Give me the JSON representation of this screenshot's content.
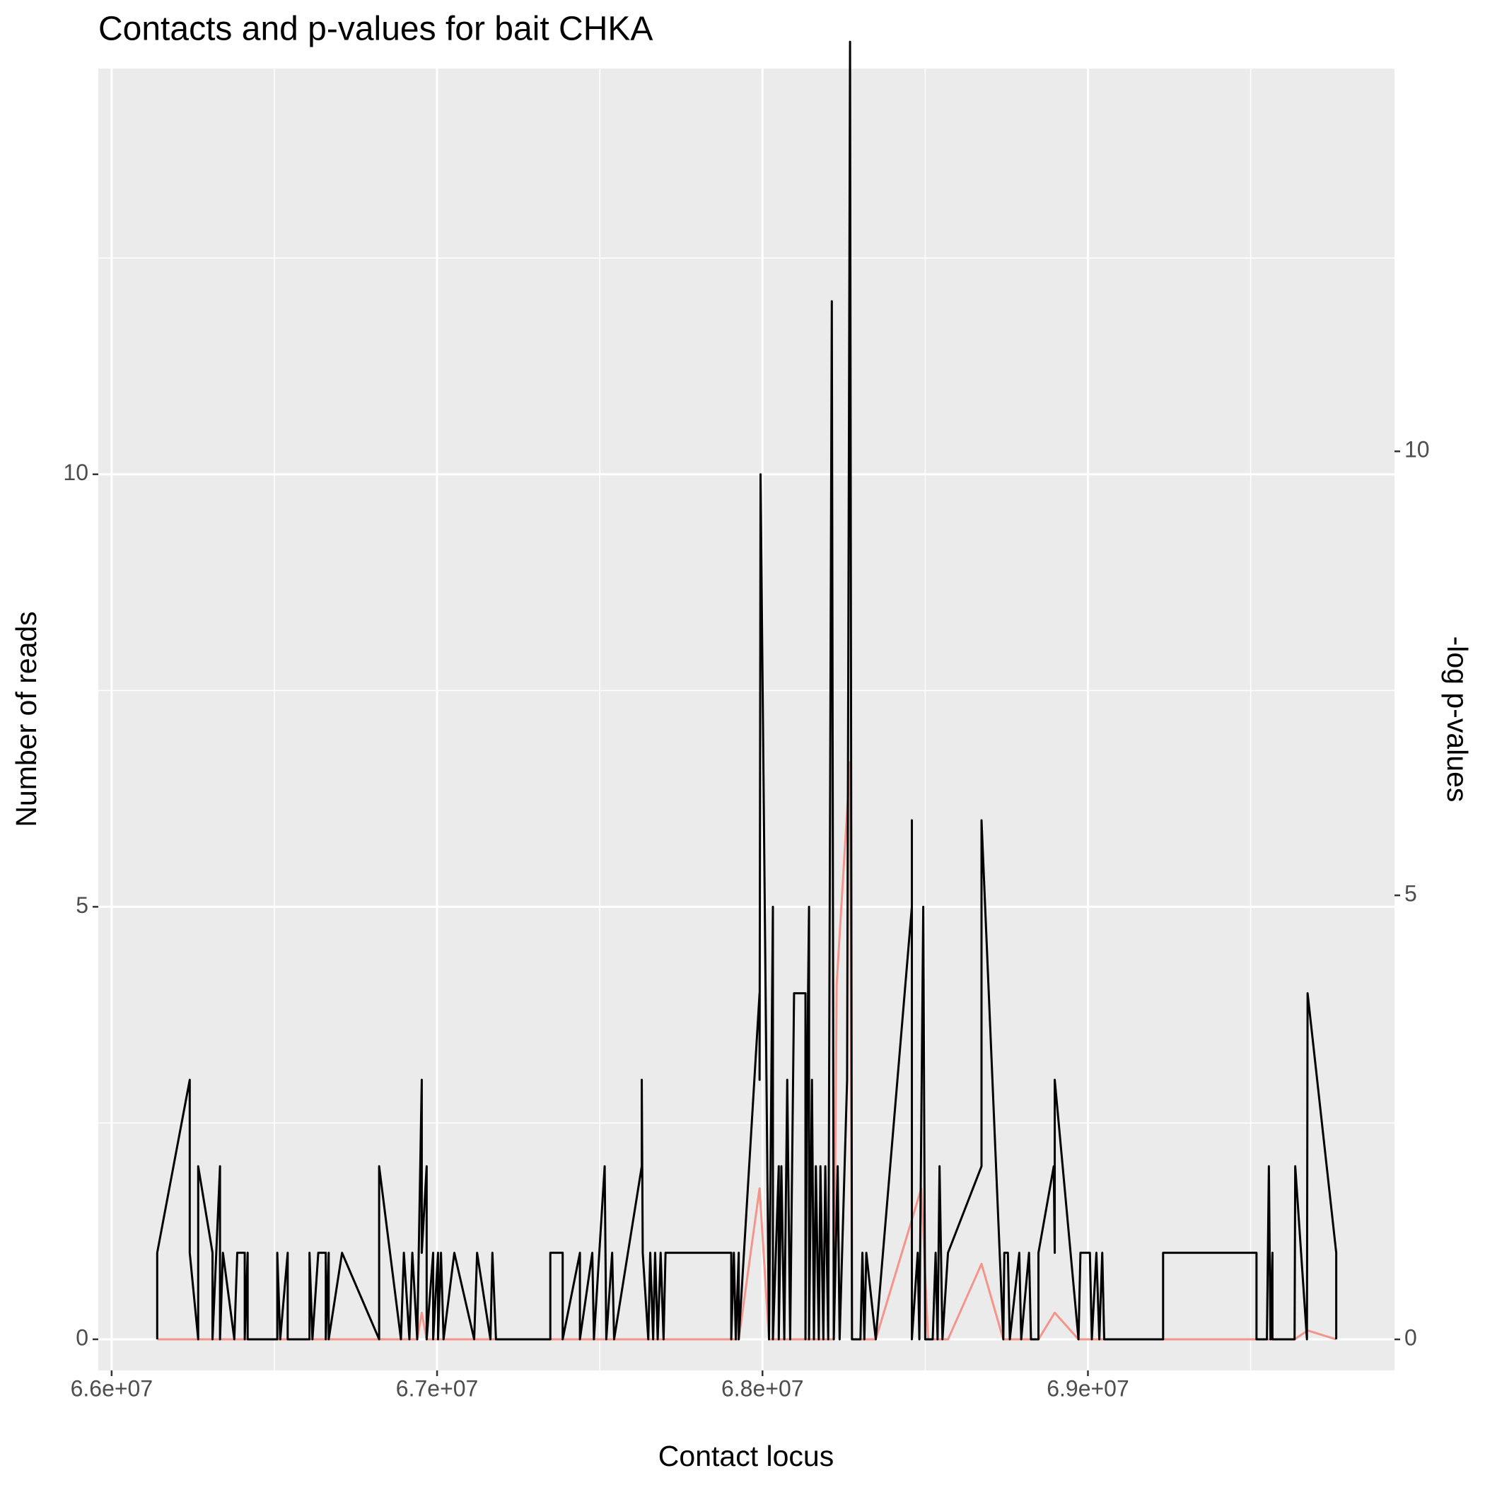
{
  "chart_data": {
    "type": "line",
    "title": "Contacts and p-values for bait CHKA",
    "x_label": "Contact locus",
    "y_label": "Number of reads",
    "y2_label": "-log p-values",
    "xlim": [
      65959000,
      69942000
    ],
    "xticks": [
      {
        "value": 66000000,
        "label": "6.6e+07"
      },
      {
        "value": 67000000,
        "label": "6.7e+07"
      },
      {
        "value": 68000000,
        "label": "6.8e+07"
      },
      {
        "value": 69000000,
        "label": "6.9e+07"
      }
    ],
    "ylim": [
      -0.36,
      14.69
    ],
    "yticks": [
      0,
      5,
      10
    ],
    "y2lim": [
      -0.35,
      14.31
    ],
    "y2ticks": [
      0,
      5,
      10
    ],
    "grid": true,
    "series": [
      {
        "color": "#000000",
        "x": [
          66140000,
          66140000,
          66240000,
          66240000,
          66266000,
          66266000,
          66310000,
          66310000,
          66333000,
          66333000,
          66342000,
          66377000,
          66386000,
          66409000,
          66409000,
          66418000,
          66418000,
          66509000,
          66509000,
          66518000,
          66541000,
          66541000,
          66608000,
          66608000,
          66617000,
          66635000,
          66658000,
          66658000,
          66667000,
          66667000,
          66708000,
          66822000,
          66822000,
          66889000,
          66898000,
          66915000,
          66924000,
          66939000,
          66953000,
          66953000,
          66968000,
          66968000,
          66988000,
          66988000,
          67003000,
          67003000,
          67012000,
          67020000,
          67053000,
          67114000,
          67123000,
          67164000,
          67170000,
          67181000,
          67193000,
          67348000,
          67348000,
          67386000,
          67386000,
          67439000,
          67439000,
          67477000,
          67482000,
          67515000,
          67520000,
          67538000,
          67544000,
          67629000,
          67629000,
          67632000,
          67649000,
          67655000,
          67664000,
          67670000,
          67678000,
          67687000,
          67696000,
          67702000,
          67904000,
          67904000,
          67912000,
          67918000,
          67927000,
          67927000,
          67991000,
          67991000,
          67994000,
          68020000,
          68032000,
          68032000,
          68050000,
          68050000,
          68058000,
          68067000,
          68076000,
          68085000,
          68097000,
          68132000,
          68132000,
          68137000,
          68143000,
          68143000,
          68152000,
          68158000,
          68164000,
          68173000,
          68178000,
          68187000,
          68193000,
          68202000,
          68213000,
          68219000,
          68231000,
          68237000,
          68260000,
          68269000,
          68275000,
          68301000,
          68307000,
          68313000,
          68319000,
          68348000,
          68459000,
          68459000,
          68459000,
          68477000,
          68482000,
          68494000,
          68500000,
          68523000,
          68532000,
          68538000,
          68544000,
          68553000,
          68570000,
          68673000,
          68673000,
          68740000,
          68743000,
          68754000,
          68760000,
          68789000,
          68795000,
          68819000,
          68825000,
          68848000,
          68848000,
          68895000,
          68898000,
          68898000,
          68971000,
          68977000,
          69006000,
          69012000,
          69026000,
          69035000,
          69044000,
          69050000,
          69231000,
          69231000,
          69518000,
          69518000,
          69550000,
          69556000,
          69561000,
          69567000,
          69567000,
          69635000,
          69637000,
          69673000,
          69675000,
          69763000,
          69763000
        ],
        "values": [
          0,
          1,
          3,
          1,
          0,
          2,
          1,
          0,
          2,
          0,
          1,
          0,
          1,
          1,
          0,
          1,
          0,
          0,
          1,
          0,
          1,
          0,
          0,
          1,
          0,
          1,
          1,
          0,
          1,
          0,
          1,
          0,
          2,
          0,
          1,
          0,
          1,
          0,
          3,
          1,
          2,
          0,
          1,
          0,
          1,
          0,
          1,
          0,
          1,
          0,
          1,
          0,
          1,
          0,
          0,
          0,
          1,
          1,
          0,
          1,
          0,
          1,
          0,
          2,
          0,
          1,
          0,
          2,
          3,
          1,
          0,
          1,
          0,
          1,
          0,
          1,
          0,
          1,
          1,
          0,
          1,
          0,
          1,
          0,
          4,
          3,
          10,
          0,
          5,
          0,
          2,
          0,
          2,
          0,
          3,
          0,
          4,
          4,
          0,
          3,
          5,
          0,
          3,
          0,
          2,
          0,
          2,
          0,
          2,
          0,
          12,
          0,
          2,
          0,
          3,
          15,
          0,
          0,
          1,
          0,
          1,
          0,
          5,
          6,
          0,
          1,
          0,
          5,
          0,
          0,
          1,
          0,
          2,
          0,
          1,
          2,
          6,
          0,
          1,
          1,
          0,
          1,
          0,
          1,
          0,
          0,
          1,
          2,
          1,
          3,
          0,
          1,
          1,
          0,
          1,
          0,
          1,
          0,
          0,
          1,
          1,
          0,
          0,
          2,
          0,
          1,
          0,
          0,
          2,
          0,
          4,
          1,
          0
        ]
      },
      {
        "color": "#f4948a",
        "axis": "y2",
        "x": [
          66140000,
          66939000,
          66953000,
          66968000,
          67927000,
          67991000,
          68020000,
          68219000,
          68228000,
          68269000,
          68275000,
          68348000,
          68488000,
          68509000,
          68570000,
          68673000,
          68740000,
          68848000,
          68898000,
          68971000,
          69635000,
          69675000,
          69763000
        ],
        "values": [
          0,
          0,
          0.3,
          0,
          0,
          1.7,
          0,
          0,
          4,
          6.5,
          0,
          0,
          1.7,
          0,
          0,
          0.85,
          0,
          0,
          0.3,
          0,
          0,
          0.1,
          0
        ]
      }
    ]
  }
}
